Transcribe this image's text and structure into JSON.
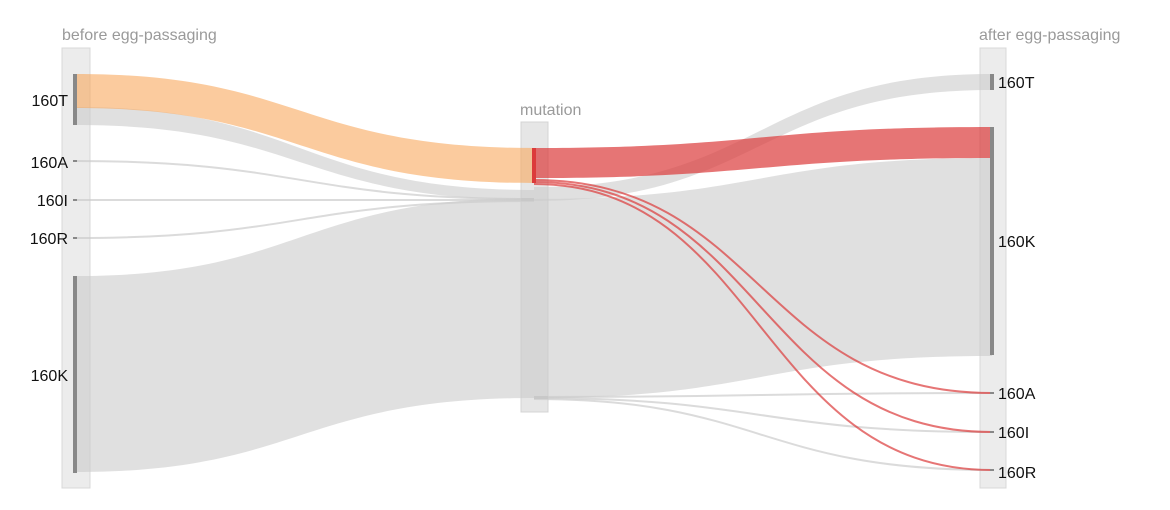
{
  "columns": {
    "before": {
      "title": "before egg-passaging"
    },
    "middle": {
      "title": "mutation"
    },
    "after": {
      "title": "after egg-passaging"
    }
  },
  "nodes": {
    "before": [
      {
        "id": "b-160T",
        "label": "160T"
      },
      {
        "id": "b-160A",
        "label": "160A"
      },
      {
        "id": "b-160I",
        "label": "160I"
      },
      {
        "id": "b-160R",
        "label": "160R"
      },
      {
        "id": "b-160K",
        "label": "160K"
      }
    ],
    "after": [
      {
        "id": "a-160T",
        "label": "160T"
      },
      {
        "id": "a-160K",
        "label": "160K"
      },
      {
        "id": "a-160A",
        "label": "160A"
      },
      {
        "id": "a-160I",
        "label": "160I"
      },
      {
        "id": "a-160R",
        "label": "160R"
      }
    ]
  },
  "colors": {
    "highlight_source": "#f9a85e",
    "mutation": "#dc3b3b",
    "neutral": "#cccccc",
    "column_bg": "#e9e9e9",
    "node_bar": "#888888",
    "title_text": "#9a9a9a",
    "label_text": "#111111"
  }
}
